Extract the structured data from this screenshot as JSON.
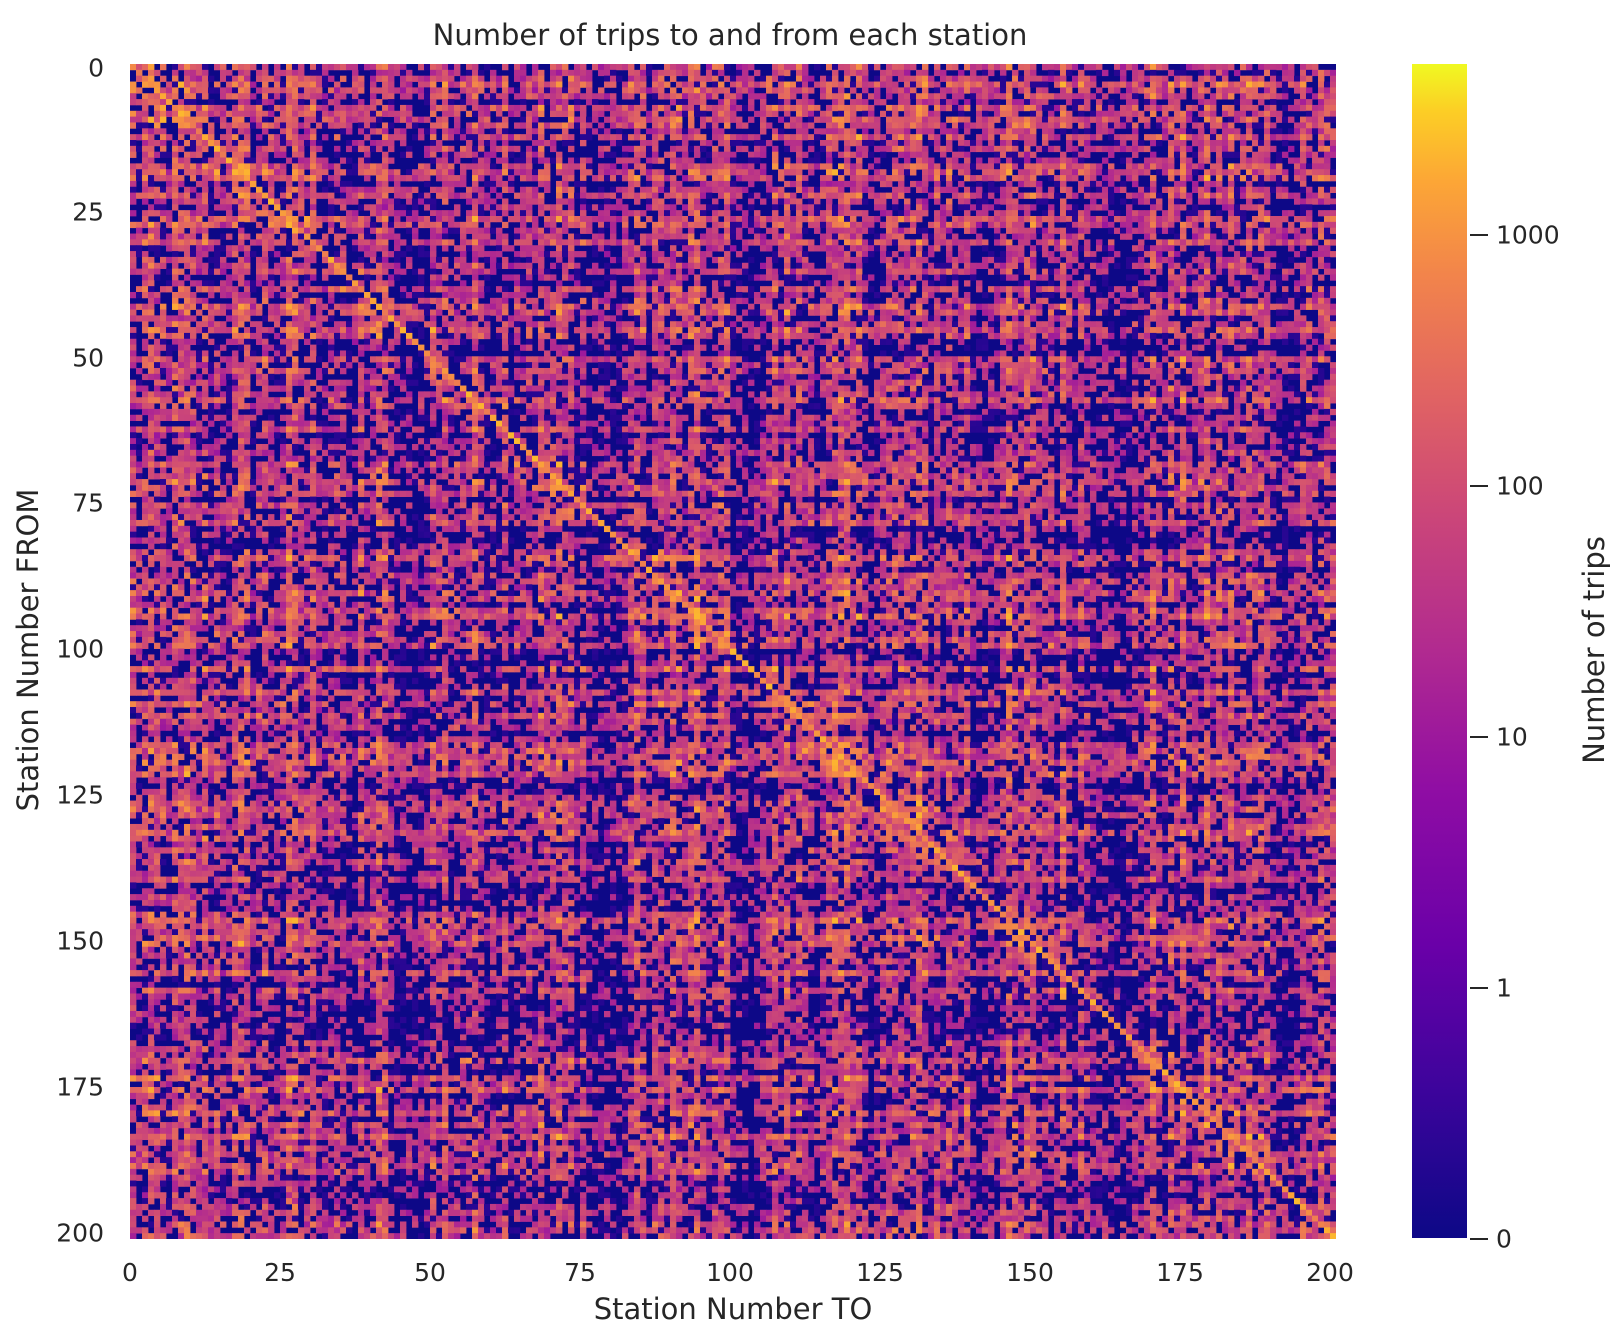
{
  "chart_data": {
    "type": "heatmap",
    "title": "Number of trips to and from each station",
    "xlabel": "Station Number TO",
    "ylabel": "Station Number FROM",
    "colorbar_label": "Number of trips",
    "x_ticks": [
      "0",
      "25",
      "50",
      "75",
      "100",
      "125",
      "150",
      "175",
      "200"
    ],
    "y_ticks": [
      "0",
      "25",
      "50",
      "75",
      "100",
      "125",
      "150",
      "175",
      "200"
    ],
    "xlim": [
      0,
      201
    ],
    "ylim": [
      0,
      201
    ],
    "y_inverted": true,
    "grid": false,
    "n_stations": 201,
    "color_scale": "log",
    "colormap": "plasma",
    "colorbar_ticks": [
      "0",
      "1",
      "10",
      "100",
      "1000"
    ],
    "colorbar_max": 4000,
    "diagonal": "high (hundreds to thousands of trips)",
    "colors": {
      "low": "#0d0887",
      "mid": "#9c179e",
      "midhigh": "#ed7953",
      "high": "#f0f921"
    }
  }
}
